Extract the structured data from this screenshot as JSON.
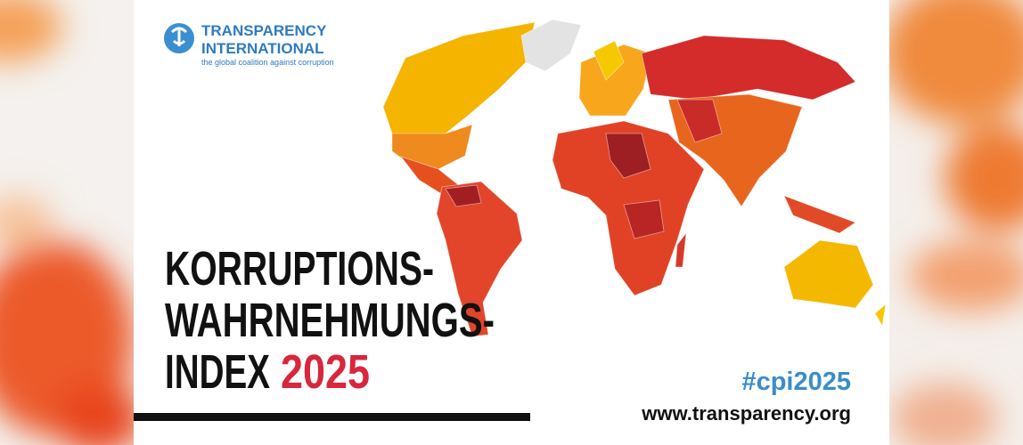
{
  "logo": {
    "name_line1": "TRANSPARENCY",
    "name_line2": "INTERNATIONAL",
    "tagline": "the global coalition against corruption"
  },
  "title": {
    "lines": [
      "KORRUPTIONS-",
      "WAHRNEHMUNGS-",
      "INDEX"
    ],
    "year": "2025"
  },
  "hashtag": "#cpi2025",
  "url": "www.transparency.org"
}
